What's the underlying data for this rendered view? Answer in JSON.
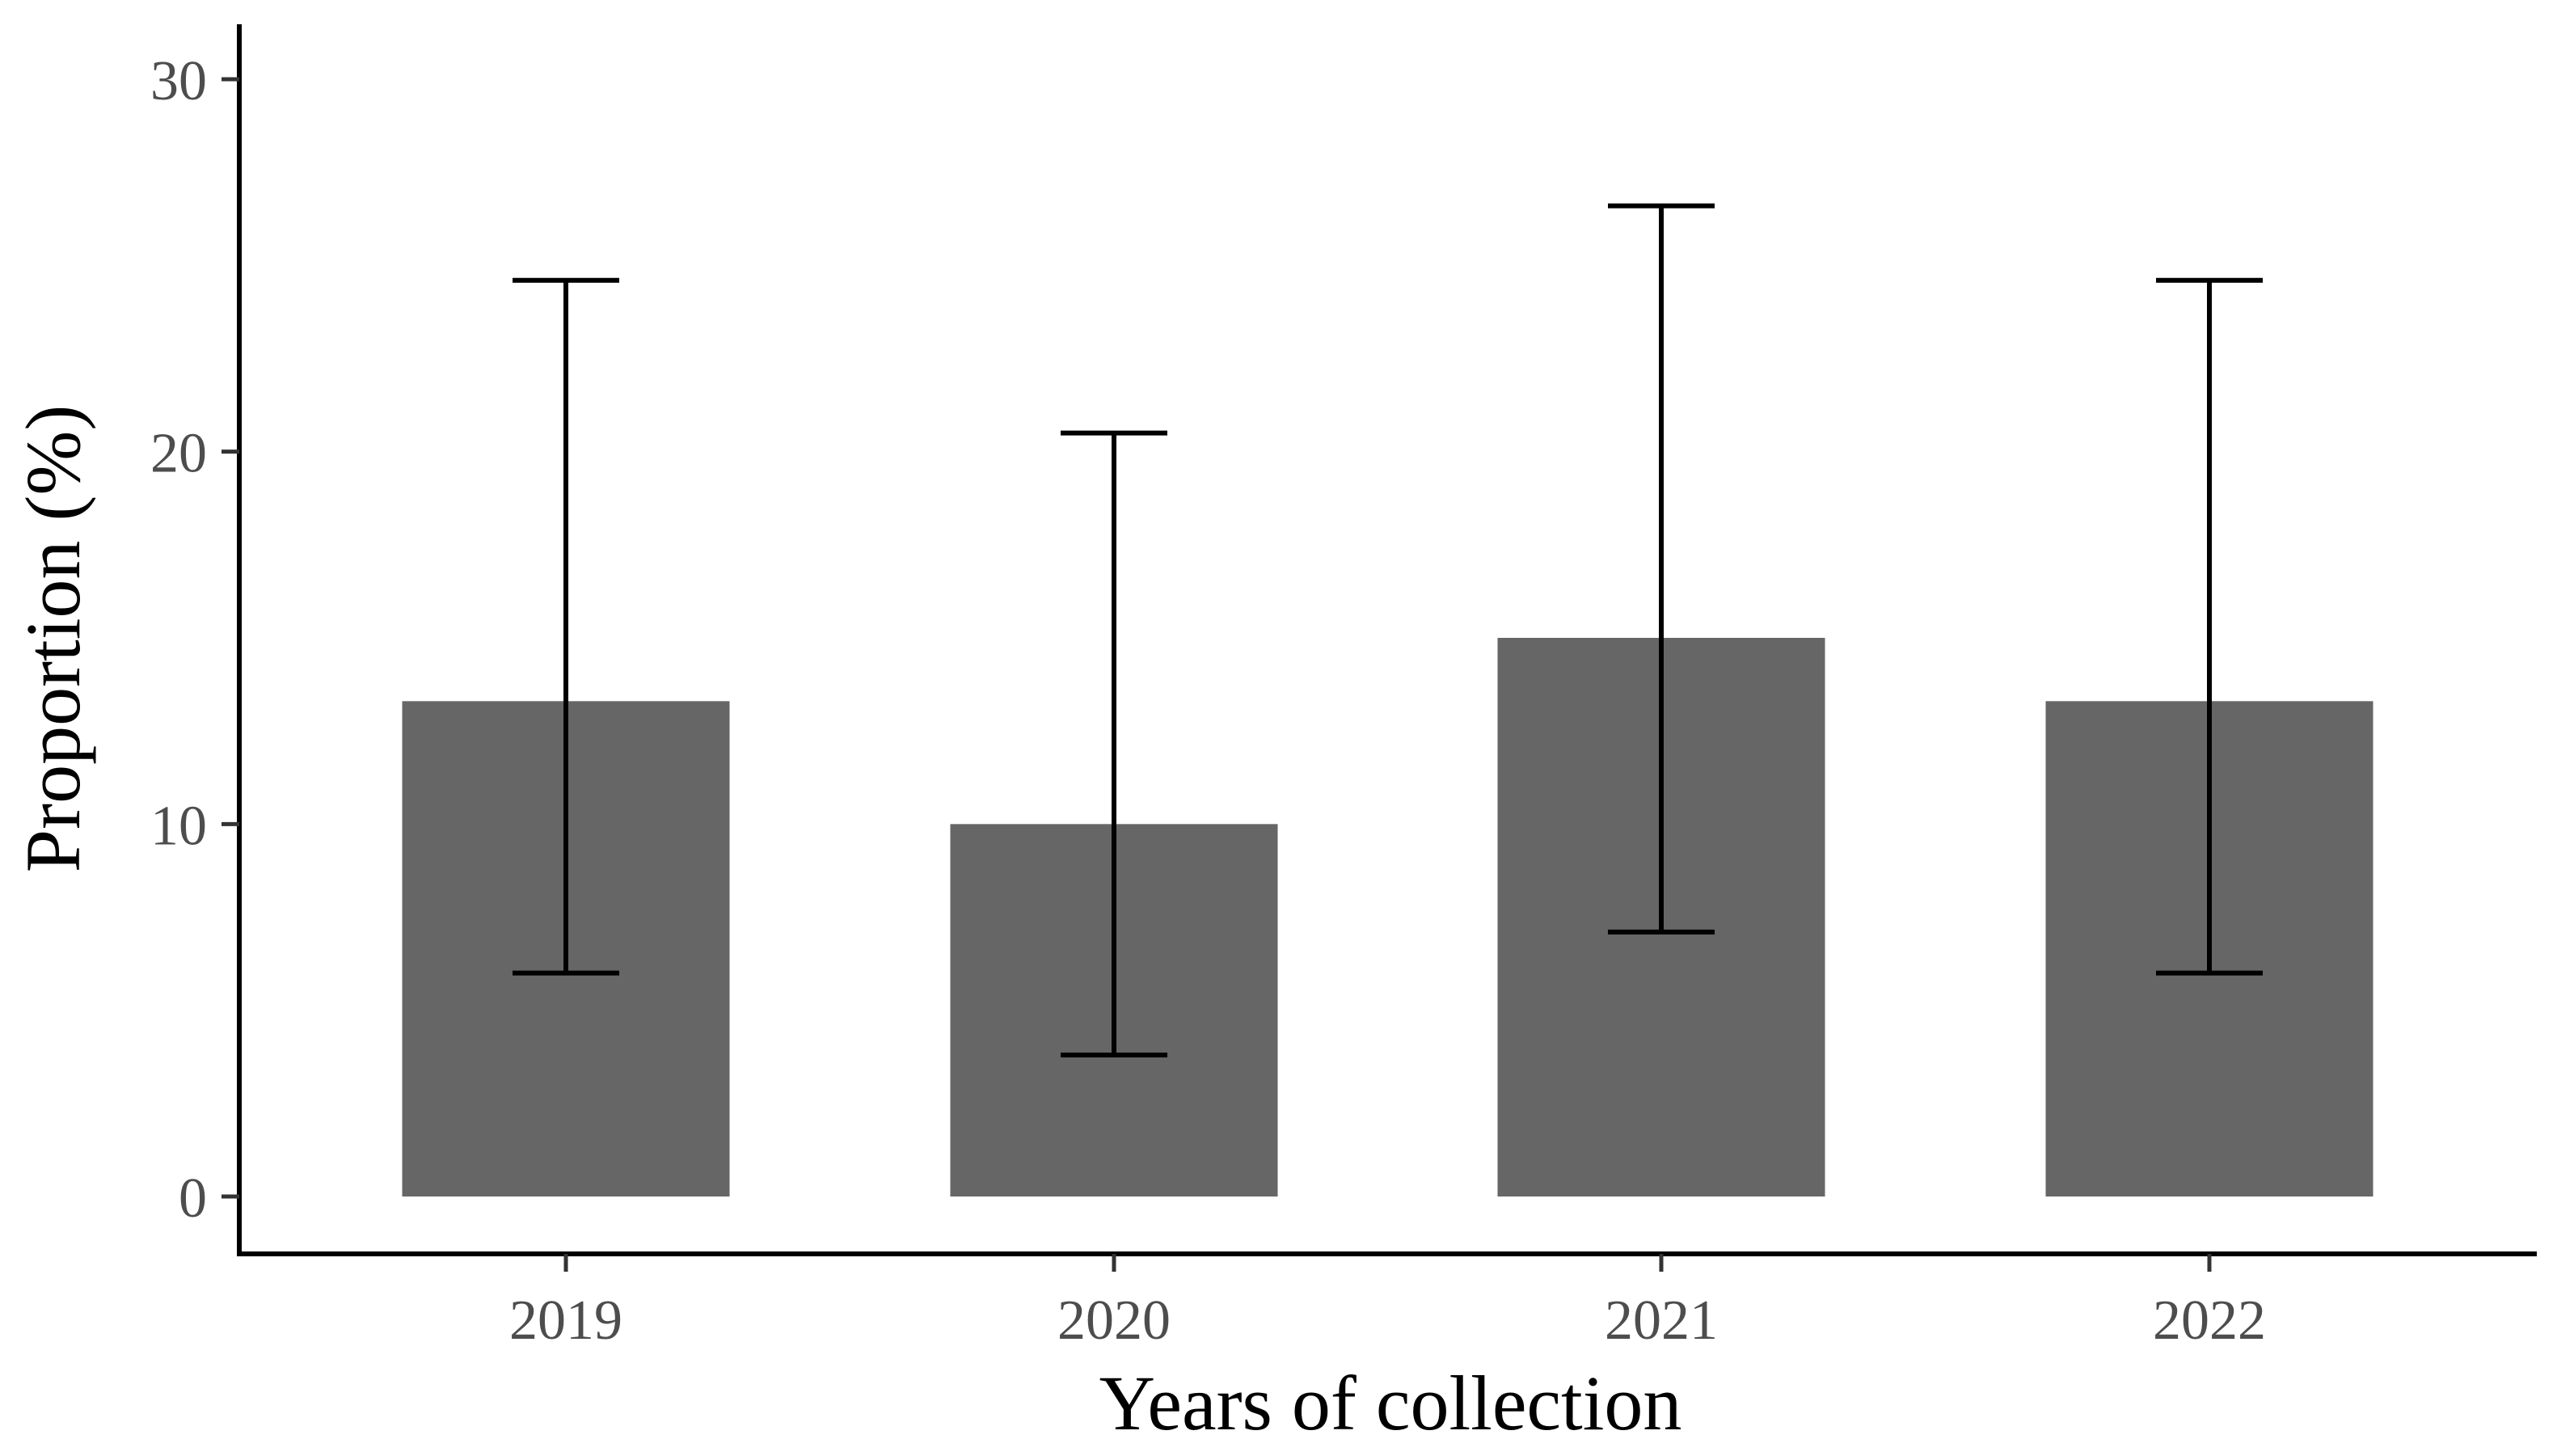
{
  "chart_data": {
    "type": "bar",
    "categories": [
      "2019",
      "2020",
      "2021",
      "2022"
    ],
    "values": [
      13.3,
      10.0,
      15.0,
      13.3
    ],
    "error_bars": [
      {
        "lower": 6.0,
        "upper": 24.6
      },
      {
        "lower": 3.8,
        "upper": 20.5
      },
      {
        "lower": 7.1,
        "upper": 26.6
      },
      {
        "lower": 6.0,
        "upper": 24.6
      }
    ],
    "title": "",
    "xlabel": "Years of collection",
    "ylabel": "Proportion (%)",
    "ylim": [
      -1.5,
      31.5
    ],
    "yticks": [
      "0",
      "10",
      "20",
      "30"
    ],
    "grid": false,
    "bar_color": "#666666",
    "error_bar_color": "#000000"
  }
}
